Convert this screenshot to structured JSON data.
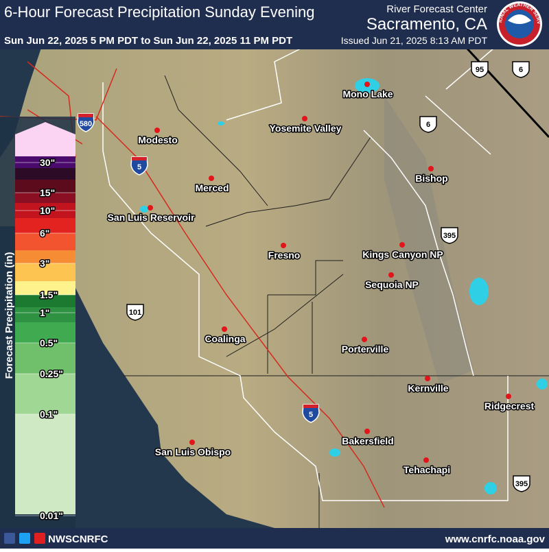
{
  "header": {
    "title": "6-Hour Forecast Precipitation Sunday Evening",
    "period": "Sun Jun 22, 2025 5 PM PDT to Sun Jun 22, 2025 11 PM PDT",
    "office_line": "River Forecast Center",
    "office": "Sacramento, CA",
    "issued": "Issued Jun 21, 2025 8:13 AM PDT",
    "logo_text": "NATIONAL WEATHER SERVICE"
  },
  "legend": {
    "title": "Forecast Precipitation (in)",
    "labels": [
      "30\"",
      "15\"",
      "10\"",
      "6\"",
      "3\"",
      "1.5\"",
      "1\"",
      "0.5\"",
      "0.25\"",
      "0.1\"",
      "0.01\""
    ],
    "colors": [
      "#fbd3f3",
      "#4a0b6d",
      "#2c0b26",
      "#5c0b1c",
      "#8a0f22",
      "#c1141e",
      "#e3231f",
      "#f2542f",
      "#f68c33",
      "#fdc452",
      "#fef28c",
      "#1b7a30",
      "#2f9142",
      "#3faa50",
      "#70bf6b",
      "#a1d794",
      "#cfe9c5"
    ]
  },
  "cities": [
    {
      "name": "Mono Lake"
    },
    {
      "name": "Yosemite Valley"
    },
    {
      "name": "Modesto"
    },
    {
      "name": "Bishop"
    },
    {
      "name": "Merced"
    },
    {
      "name": "San Luis Reservoir"
    },
    {
      "name": "Fresno"
    },
    {
      "name": "Kings Canyon NP"
    },
    {
      "name": "Sequoia NP"
    },
    {
      "name": "Coalinga"
    },
    {
      "name": "Porterville"
    },
    {
      "name": "Kernville"
    },
    {
      "name": "Ridgecrest"
    },
    {
      "name": "Bakersfield"
    },
    {
      "name": "San Luis Obispo"
    },
    {
      "name": "Tehachapi"
    }
  ],
  "interstates": [
    "580",
    "5",
    "5"
  ],
  "us_routes": [
    "95",
    "6",
    "6",
    "395",
    "101",
    "395"
  ],
  "footer": {
    "handle": "NWSCNRFC",
    "url": "www.cnrfc.noaa.gov"
  }
}
